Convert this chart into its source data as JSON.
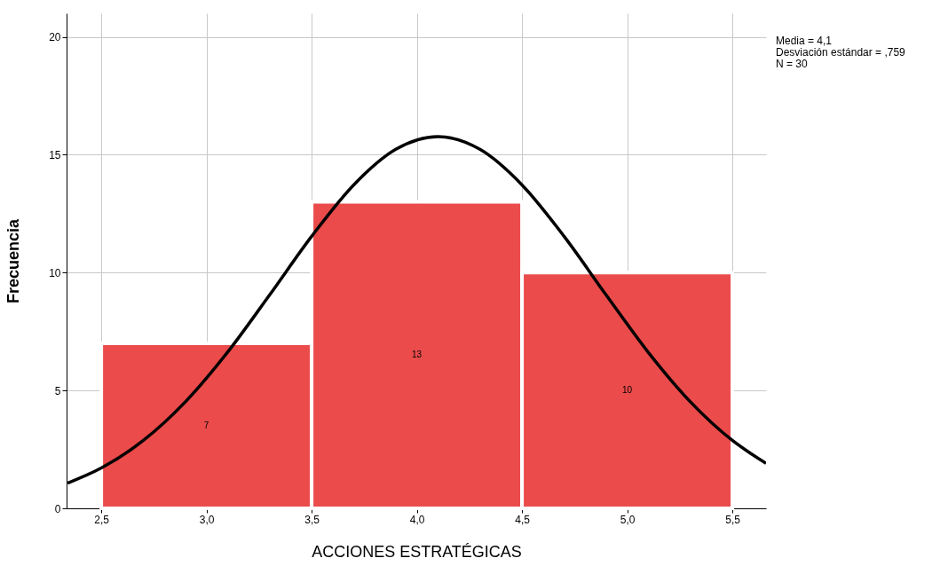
{
  "chart_data": {
    "type": "histogram",
    "xlabel": "ACCIONES ESTRATÉGICAS",
    "ylabel": "Frecuencia",
    "annotations": [
      "Media = 4,1",
      "Desviación estándar = ,759",
      "N = 30"
    ],
    "bins": [
      2.5,
      3.5,
      4.5,
      5.5
    ],
    "values": [
      7,
      13,
      10
    ],
    "color": "#eb4b4b",
    "value_labels": [
      "7",
      "13",
      "10"
    ],
    "series": [
      {
        "type": "line",
        "color": "#000000",
        "x": [
          2.34,
          2.5,
          2.7,
          2.9,
          3.1,
          3.3,
          3.5,
          3.7,
          3.9,
          4.1,
          4.3,
          4.5,
          4.7,
          4.9,
          5.1,
          5.3,
          5.5,
          5.66
        ],
        "values": [
          1.07,
          1.71,
          2.88,
          4.52,
          6.62,
          9.05,
          11.54,
          13.72,
          15.23,
          15.77,
          15.23,
          13.72,
          11.54,
          9.05,
          6.62,
          4.52,
          2.88,
          1.91
        ]
      }
    ],
    "xlim": [
      2.335,
      5.66
    ],
    "xticks": [
      {
        "value": 2.5,
        "label": "2,5"
      },
      {
        "value": 3,
        "label": "3,0"
      },
      {
        "value": 3.5,
        "label": "3,5"
      },
      {
        "value": 4,
        "label": "4,0"
      },
      {
        "value": 4.5,
        "label": "4,5"
      },
      {
        "value": 5,
        "label": "5,0"
      },
      {
        "value": 5.5,
        "label": "5,5"
      }
    ],
    "ylim": [
      0,
      21
    ],
    "yticks": [
      0,
      5,
      10,
      15,
      20
    ],
    "grid": true
  }
}
